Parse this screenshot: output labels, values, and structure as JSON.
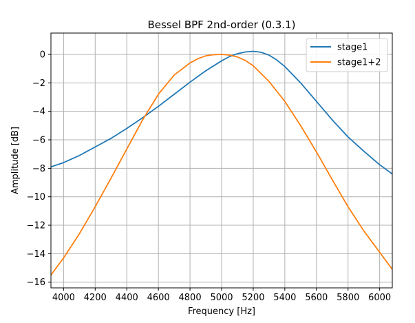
{
  "chart_data": {
    "type": "line",
    "title": "Bessel BPF 2nd-order (0.3.1)",
    "xlabel": "Frequency [Hz]",
    "ylabel": "Amplitude [dB]",
    "xlim": [
      3920,
      6080
    ],
    "ylim": [
      -16.4,
      1.5
    ],
    "xticks": [
      4000,
      4200,
      4400,
      4600,
      4800,
      5000,
      5200,
      5400,
      5600,
      5800,
      6000
    ],
    "yticks": [
      0,
      -2,
      -4,
      -6,
      -8,
      -10,
      -12,
      -14,
      -16
    ],
    "grid": true,
    "legend_position": "top-right",
    "series": [
      {
        "name": "stage1",
        "color": "#1f77b4",
        "x": [
          3920,
          4000,
          4100,
          4200,
          4300,
          4400,
          4500,
          4600,
          4700,
          4800,
          4900,
          5000,
          5050,
          5100,
          5150,
          5200,
          5250,
          5300,
          5350,
          5400,
          5500,
          5600,
          5700,
          5800,
          5900,
          6000,
          6080
        ],
        "y": [
          -7.9,
          -7.6,
          -7.1,
          -6.5,
          -5.9,
          -5.2,
          -4.45,
          -3.65,
          -2.8,
          -1.95,
          -1.15,
          -0.45,
          -0.15,
          0.05,
          0.17,
          0.22,
          0.15,
          -0.05,
          -0.4,
          -0.85,
          -2.0,
          -3.3,
          -4.6,
          -5.8,
          -6.8,
          -7.75,
          -8.4
        ]
      },
      {
        "name": "stage1+2",
        "color": "#ff7f0e",
        "x": [
          3920,
          4000,
          4100,
          4200,
          4300,
          4400,
          4500,
          4600,
          4700,
          4800,
          4850,
          4900,
          4950,
          5000,
          5050,
          5100,
          5150,
          5200,
          5300,
          5400,
          5500,
          5600,
          5700,
          5800,
          5900,
          6000,
          6080
        ],
        "y": [
          -15.5,
          -14.3,
          -12.6,
          -10.7,
          -8.7,
          -6.65,
          -4.6,
          -2.8,
          -1.45,
          -0.6,
          -0.3,
          -0.1,
          -0.02,
          0.0,
          -0.05,
          -0.18,
          -0.42,
          -0.8,
          -1.9,
          -3.3,
          -5.0,
          -6.85,
          -8.8,
          -10.7,
          -12.4,
          -13.9,
          -15.1
        ]
      }
    ]
  }
}
